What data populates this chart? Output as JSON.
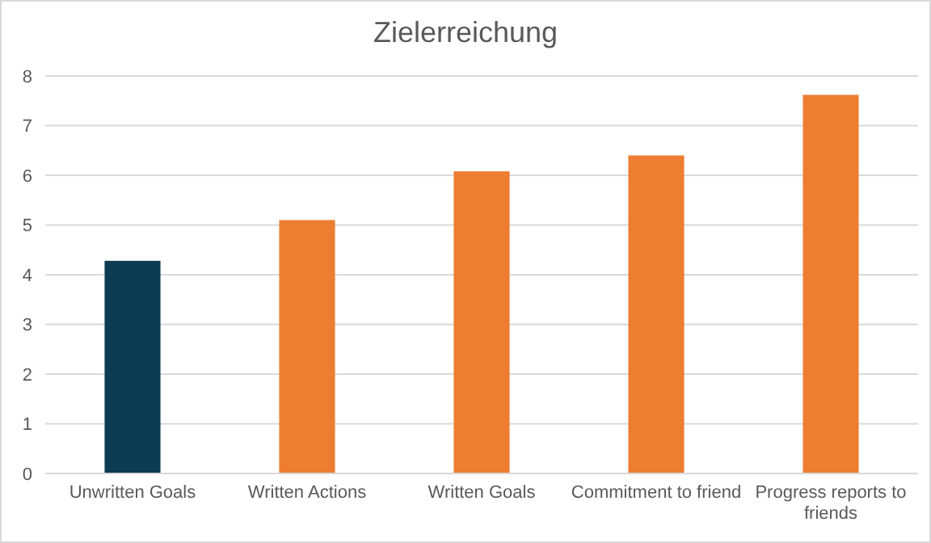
{
  "chart_data": {
    "type": "bar",
    "title": "Zielerreichung",
    "categories": [
      "Unwritten Goals",
      "Written Actions",
      "Written Goals",
      "Commitment to friend",
      "Progress reports to friends"
    ],
    "values": [
      4.28,
      5.1,
      6.08,
      6.4,
      7.62
    ],
    "colors": [
      "#0d3b52",
      "#ed7d31",
      "#ed7d31",
      "#ed7d31",
      "#ed7d31"
    ],
    "ylim": [
      0,
      8
    ],
    "yticks": [
      0,
      1,
      2,
      3,
      4,
      5,
      6,
      7,
      8
    ],
    "grid": "y"
  }
}
